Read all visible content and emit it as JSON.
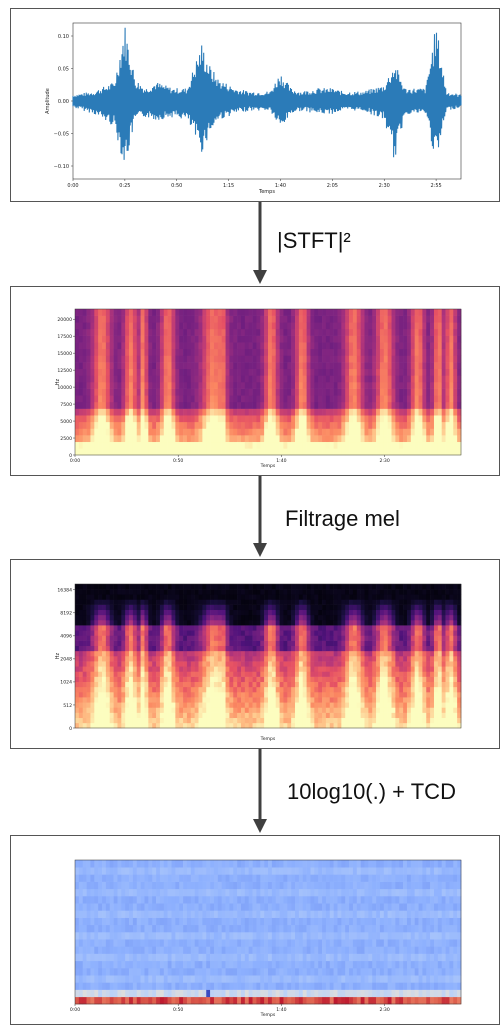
{
  "steps": [
    "|STFT|²",
    "Filtrage mel",
    "10log10(.) + TCD"
  ],
  "palette": {
    "waveform": "#2b7bb8",
    "arrow": "#404040"
  },
  "panels": [
    {
      "chart_data": {
        "type": "line",
        "title": "",
        "xlabel": "Temps",
        "ylabel": "Amplitude",
        "xlim": [
          0,
          187
        ],
        "ylim": [
          -0.12,
          0.12
        ],
        "xticks": [
          "0:00",
          "0:25",
          "0:50",
          "1:15",
          "1:40",
          "2:05",
          "2:30",
          "2:55"
        ],
        "yticks": [
          "0.10",
          "0.05",
          "0.00",
          "−0.05",
          "−0.10"
        ],
        "envelope": {
          "x": [
            0,
            10,
            20,
            25,
            30,
            35,
            40,
            48,
            55,
            62,
            66,
            70,
            78,
            85,
            95,
            100,
            105,
            110,
            118,
            125,
            130,
            140,
            150,
            155,
            160,
            170,
            175,
            180,
            187
          ],
          "upper": [
            0.01,
            0.015,
            0.03,
            0.12,
            0.035,
            0.02,
            0.03,
            0.02,
            0.02,
            0.09,
            0.055,
            0.035,
            0.02,
            0.015,
            0.015,
            0.045,
            0.02,
            0.015,
            0.02,
            0.02,
            0.015,
            0.015,
            0.025,
            0.06,
            0.02,
            0.02,
            0.12,
            0.015,
            0.01
          ],
          "lower": [
            -0.01,
            -0.02,
            -0.04,
            -0.105,
            -0.03,
            -0.025,
            -0.03,
            -0.025,
            -0.03,
            -0.08,
            -0.05,
            -0.03,
            -0.02,
            -0.015,
            -0.015,
            -0.045,
            -0.02,
            -0.015,
            -0.02,
            -0.02,
            -0.015,
            -0.015,
            -0.03,
            -0.095,
            -0.02,
            -0.02,
            -0.1,
            -0.015,
            -0.01
          ]
        }
      }
    },
    {
      "chart_data": {
        "type": "heatmap",
        "title": "",
        "xlabel": "Temps",
        "ylabel": "Hz",
        "xlim": [
          0,
          187
        ],
        "ylim": [
          0,
          22050
        ],
        "xticks": [
          "0:00",
          "0:50",
          "1:40",
          "2:30"
        ],
        "yticks": [
          "0",
          "2500",
          "5000",
          "7500",
          "10000",
          "12500",
          "15000",
          "17500",
          "20000"
        ],
        "colormap": "magma",
        "rows": 22,
        "columns": 100,
        "bursts": [
          [
            13,
            2
          ],
          [
            27,
            1.5
          ],
          [
            33,
            1
          ],
          [
            45,
            1.5
          ],
          [
            67,
            2.5
          ],
          [
            71,
            1.2
          ],
          [
            95,
            1.5
          ],
          [
            110,
            1.5
          ],
          [
            135,
            2
          ],
          [
            150,
            2
          ],
          [
            166,
            1.5
          ],
          [
            176,
            1.2
          ],
          [
            182,
            1.2
          ]
        ]
      }
    },
    {
      "chart_data": {
        "type": "heatmap",
        "title": "",
        "xlabel": "Temps",
        "ylabel": "Hz",
        "xlim": [
          0,
          187
        ],
        "yticks": [
          "0",
          "512",
          "1024",
          "2048",
          "4096",
          "8192",
          "16384"
        ],
        "colormap": "magma",
        "rows": 28,
        "columns": 100,
        "bursts": [
          [
            13,
            2
          ],
          [
            27,
            1.5
          ],
          [
            33,
            1
          ],
          [
            45,
            1.5
          ],
          [
            67,
            2.5
          ],
          [
            71,
            1.2
          ],
          [
            95,
            1.5
          ],
          [
            110,
            1.5
          ],
          [
            135,
            2
          ],
          [
            150,
            2
          ],
          [
            166,
            1.5
          ],
          [
            176,
            1.2
          ],
          [
            182,
            1.2
          ]
        ]
      }
    },
    {
      "chart_data": {
        "type": "heatmap",
        "title": "",
        "xlabel": "Temps",
        "ylabel": "",
        "xlim": [
          0,
          187
        ],
        "xticks": [
          "0:00",
          "0:50",
          "1:40",
          "2:30"
        ],
        "colormap": "coolwarm",
        "rows": 20,
        "columns": 100
      }
    }
  ]
}
